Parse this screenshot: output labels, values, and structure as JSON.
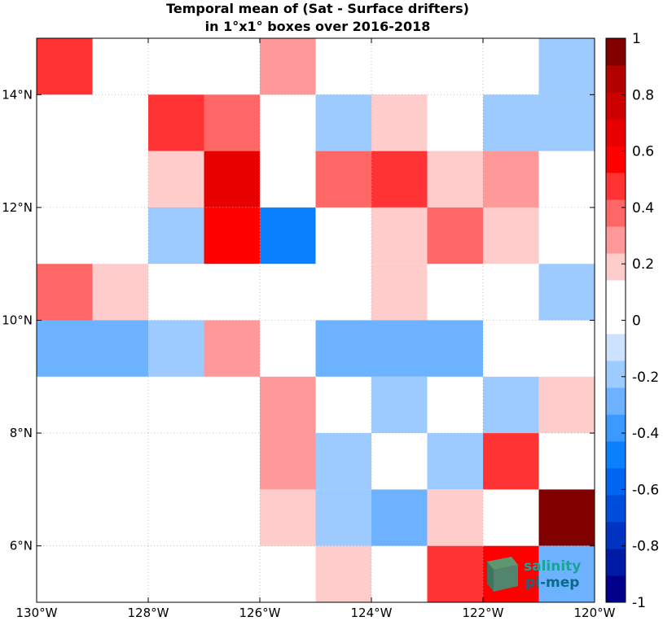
{
  "chart_data": {
    "type": "heatmap",
    "title": [
      "Temporal mean of (Sat - Surface drifters)",
      "in 1°x1° boxes over 2016-2018"
    ],
    "x_range": [
      -130,
      -120
    ],
    "y_range": [
      5,
      15
    ],
    "x_tick_labels": [
      "130°W",
      "128°W",
      "126°W",
      "124°W",
      "122°W",
      "120°W"
    ],
    "y_tick_labels": [
      "6°N",
      "8°N",
      "10°N",
      "12°N",
      "14°N"
    ],
    "y_ticks": [
      6,
      8,
      10,
      12,
      14
    ],
    "x_ticks": [
      -130,
      -128,
      -126,
      -124,
      -122,
      -120
    ],
    "grid": true,
    "colorbar": {
      "limits": [
        -1,
        1
      ],
      "tick_values": [
        -1,
        -0.8,
        -0.6,
        -0.4,
        -0.2,
        0,
        0.2,
        0.4,
        0.6,
        0.8,
        1
      ],
      "tick_labels": [
        "-1",
        "-0.8",
        "-0.6",
        "-0.4",
        "-0.2",
        "0",
        "0.2",
        "0.4",
        "0.6",
        "0.8",
        "1"
      ],
      "colors": [
        "#00008b",
        "#001aa6",
        "#0033c1",
        "#004ddb",
        "#0066f2",
        "#0a80ff",
        "#3c99ff",
        "#6db2ff",
        "#9ecbff",
        "#cce2ff",
        "#ffffff",
        "#ffffff",
        "#ffcccc",
        "#ff9999",
        "#ff6666",
        "#ff3333",
        "#ff0000",
        "#e60000",
        "#cc0000",
        "#b30000",
        "#800000"
      ]
    },
    "cells": [
      {
        "lon": -129.5,
        "lat": 14.5,
        "value": 0.5
      },
      {
        "lon": -125.5,
        "lat": 14.5,
        "value": 0.25
      },
      {
        "lon": -120.5,
        "lat": 14.5,
        "value": -0.15
      },
      {
        "lon": -127.5,
        "lat": 13.5,
        "value": 0.5
      },
      {
        "lon": -126.5,
        "lat": 13.5,
        "value": 0.4
      },
      {
        "lon": -124.5,
        "lat": 13.5,
        "value": -0.15
      },
      {
        "lon": -123.5,
        "lat": 13.5,
        "value": 0.15
      },
      {
        "lon": -121.5,
        "lat": 13.5,
        "value": -0.15
      },
      {
        "lon": -120.5,
        "lat": 13.5,
        "value": -0.15
      },
      {
        "lon": -127.5,
        "lat": 12.5,
        "value": 0.2
      },
      {
        "lon": -126.5,
        "lat": 12.5,
        "value": 0.7
      },
      {
        "lon": -124.5,
        "lat": 12.5,
        "value": 0.4
      },
      {
        "lon": -123.5,
        "lat": 12.5,
        "value": 0.5
      },
      {
        "lon": -122.5,
        "lat": 12.5,
        "value": 0.15
      },
      {
        "lon": -121.5,
        "lat": 12.5,
        "value": 0.3
      },
      {
        "lon": -127.5,
        "lat": 11.5,
        "value": -0.15
      },
      {
        "lon": -126.5,
        "lat": 11.5,
        "value": 0.6
      },
      {
        "lon": -125.5,
        "lat": 11.5,
        "value": -0.5
      },
      {
        "lon": -123.5,
        "lat": 11.5,
        "value": 0.15
      },
      {
        "lon": -122.5,
        "lat": 11.5,
        "value": 0.4
      },
      {
        "lon": -121.5,
        "lat": 11.5,
        "value": 0.15
      },
      {
        "lon": -129.5,
        "lat": 10.5,
        "value": 0.4
      },
      {
        "lon": -128.5,
        "lat": 10.5,
        "value": 0.15
      },
      {
        "lon": -123.5,
        "lat": 10.5,
        "value": 0.15
      },
      {
        "lon": -120.5,
        "lat": 10.5,
        "value": -0.15
      },
      {
        "lon": -129.5,
        "lat": 9.5,
        "value": -0.25
      },
      {
        "lon": -128.5,
        "lat": 9.5,
        "value": -0.25
      },
      {
        "lon": -127.5,
        "lat": 9.5,
        "value": -0.15
      },
      {
        "lon": -126.5,
        "lat": 9.5,
        "value": 0.3
      },
      {
        "lon": -124.5,
        "lat": 9.5,
        "value": -0.25
      },
      {
        "lon": -123.5,
        "lat": 9.5,
        "value": -0.25
      },
      {
        "lon": -122.5,
        "lat": 9.5,
        "value": -0.25
      },
      {
        "lon": -125.5,
        "lat": 8.5,
        "value": 0.3
      },
      {
        "lon": -123.5,
        "lat": 8.5,
        "value": -0.15
      },
      {
        "lon": -121.5,
        "lat": 8.5,
        "value": -0.15
      },
      {
        "lon": -120.5,
        "lat": 8.5,
        "value": 0.15
      },
      {
        "lon": -125.5,
        "lat": 7.5,
        "value": 0.3
      },
      {
        "lon": -124.5,
        "lat": 7.5,
        "value": -0.15
      },
      {
        "lon": -122.5,
        "lat": 7.5,
        "value": -0.15
      },
      {
        "lon": -121.5,
        "lat": 7.5,
        "value": 0.5
      },
      {
        "lon": -125.5,
        "lat": 6.5,
        "value": 0.15
      },
      {
        "lon": -124.5,
        "lat": 6.5,
        "value": -0.15
      },
      {
        "lon": -123.5,
        "lat": 6.5,
        "value": -0.25
      },
      {
        "lon": -122.5,
        "lat": 6.5,
        "value": 0.15
      },
      {
        "lon": -120.5,
        "lat": 6.5,
        "value": 0.95
      },
      {
        "lon": -124.5,
        "lat": 5.5,
        "value": 0.15
      },
      {
        "lon": -122.5,
        "lat": 5.5,
        "value": 0.5
      },
      {
        "lon": -121.5,
        "lat": 5.5,
        "value": 0.6
      },
      {
        "lon": -120.5,
        "lat": 5.5,
        "value": -0.3
      }
    ]
  },
  "logo": {
    "line1": "salinity",
    "line2": "pi-mep",
    "color1": "#1aa39a",
    "color2": "#0b6b86"
  }
}
